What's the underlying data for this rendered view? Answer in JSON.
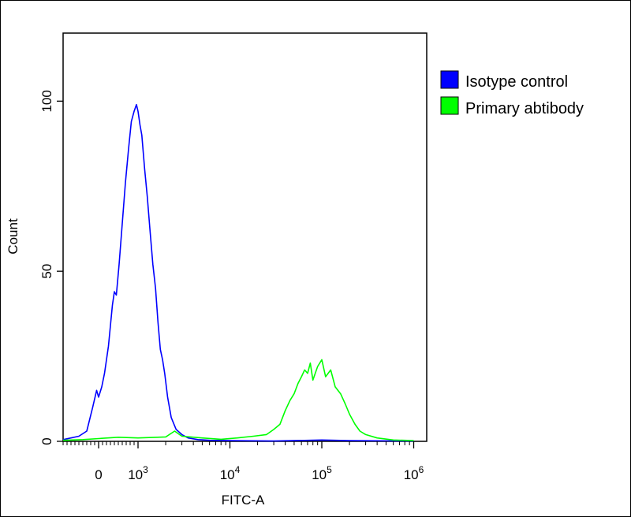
{
  "chart_data": {
    "type": "line",
    "title": "",
    "xlabel": "FITC-A",
    "ylabel": "Count",
    "x_scale": "biexponential (log above 10^3)",
    "xlim": [
      -1000,
      1000000
    ],
    "ylim": [
      0,
      120
    ],
    "grid": false,
    "legend_position": "right",
    "x_ticks": [
      {
        "value": 0,
        "base": "0",
        "exp": ""
      },
      {
        "value": 1000,
        "base": "10",
        "exp": "3"
      },
      {
        "value": 10000,
        "base": "10",
        "exp": "4"
      },
      {
        "value": 100000,
        "base": "10",
        "exp": "5"
      },
      {
        "value": 1000000,
        "base": "10",
        "exp": "6"
      }
    ],
    "y_ticks": [
      {
        "value": 0,
        "label": "0"
      },
      {
        "value": 50,
        "label": "50"
      },
      {
        "value": 100,
        "label": "100"
      }
    ],
    "series": [
      {
        "name": "Isotype control",
        "color": "#0000ff",
        "points": [
          [
            -900,
            0.5
          ],
          [
            -700,
            1
          ],
          [
            -500,
            1.5
          ],
          [
            -300,
            3
          ],
          [
            -150,
            10
          ],
          [
            -50,
            15
          ],
          [
            0,
            13
          ],
          [
            80,
            16
          ],
          [
            150,
            20
          ],
          [
            250,
            28
          ],
          [
            350,
            40
          ],
          [
            400,
            44
          ],
          [
            450,
            43
          ],
          [
            520,
            52
          ],
          [
            600,
            64
          ],
          [
            680,
            76
          ],
          [
            760,
            86
          ],
          [
            830,
            94
          ],
          [
            900,
            97
          ],
          [
            960,
            99
          ],
          [
            1000,
            97
          ],
          [
            1050,
            93
          ],
          [
            1100,
            90
          ],
          [
            1180,
            80
          ],
          [
            1260,
            72
          ],
          [
            1350,
            62
          ],
          [
            1450,
            52
          ],
          [
            1550,
            45
          ],
          [
            1650,
            35
          ],
          [
            1750,
            27
          ],
          [
            1850,
            24
          ],
          [
            1950,
            20
          ],
          [
            2100,
            13
          ],
          [
            2300,
            7
          ],
          [
            2600,
            3.5
          ],
          [
            3000,
            2
          ],
          [
            3500,
            1
          ],
          [
            4500,
            0.5
          ],
          [
            6000,
            0.3
          ],
          [
            10000,
            0.2
          ],
          [
            30000,
            0.1
          ],
          [
            100000,
            0.4
          ],
          [
            200000,
            0.2
          ],
          [
            1000000,
            0.1
          ]
        ]
      },
      {
        "name": "Primary abtibody",
        "color": "#00ff00",
        "points": [
          [
            -900,
            0.3
          ],
          [
            -400,
            0.5
          ],
          [
            0,
            0.8
          ],
          [
            500,
            1.2
          ],
          [
            1000,
            1
          ],
          [
            2000,
            1.3
          ],
          [
            2500,
            3
          ],
          [
            3000,
            1.5
          ],
          [
            5000,
            1
          ],
          [
            8000,
            0.6
          ],
          [
            12000,
            1
          ],
          [
            18000,
            1.5
          ],
          [
            25000,
            2
          ],
          [
            30000,
            3.5
          ],
          [
            35000,
            5
          ],
          [
            40000,
            9
          ],
          [
            45000,
            12
          ],
          [
            50000,
            14
          ],
          [
            55000,
            17
          ],
          [
            60000,
            19
          ],
          [
            65000,
            21
          ],
          [
            70000,
            20
          ],
          [
            75000,
            23
          ],
          [
            80000,
            18
          ],
          [
            90000,
            22
          ],
          [
            100000,
            24
          ],
          [
            110000,
            19
          ],
          [
            125000,
            21
          ],
          [
            140000,
            16
          ],
          [
            160000,
            14
          ],
          [
            180000,
            11
          ],
          [
            200000,
            8
          ],
          [
            230000,
            5
          ],
          [
            260000,
            3
          ],
          [
            300000,
            2
          ],
          [
            400000,
            1
          ],
          [
            600000,
            0.4
          ],
          [
            1000000,
            0.2
          ]
        ]
      }
    ]
  }
}
